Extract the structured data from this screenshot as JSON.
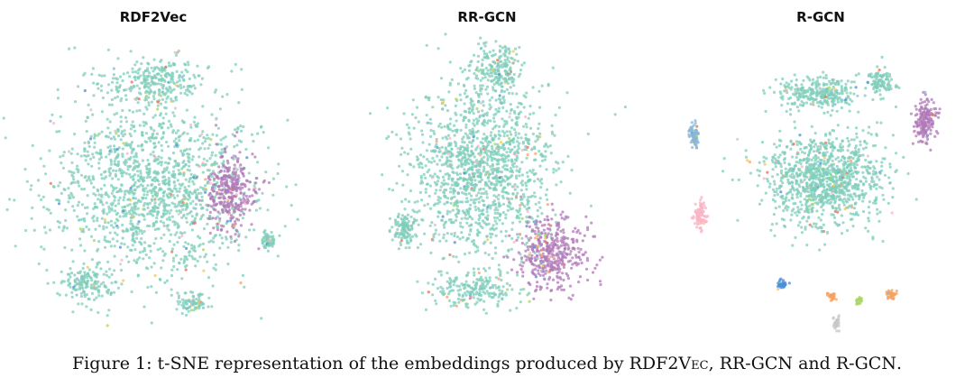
{
  "caption": {
    "prefix": "Figure 1: t-SNE representation of the embeddings produced by ",
    "method1": "RDF2Vec",
    "sep1": ", ",
    "method2": "RR-GCN",
    "sep2": " and ",
    "method3": "R-GCN",
    "suffix": "."
  },
  "palette": {
    "dominant": "#7fcdbb",
    "purple": "#b07ab8",
    "others": [
      "#f2c94c",
      "#f4a261",
      "#e76f51",
      "#8ab6d6",
      "#a6d854",
      "#fbb4c4",
      "#4a90d9",
      "#c7c7c7"
    ]
  },
  "chart_data": [
    {
      "type": "scatter",
      "title": "RDF2Vec",
      "xlabel": "",
      "ylabel": "",
      "grid": false,
      "axes_visible": false,
      "clusters": [
        {
          "cx": 0.0,
          "cy": 0.0,
          "sx": 0.95,
          "sy": 0.75,
          "n": 1500,
          "color": "dominant"
        },
        {
          "cx": 0.05,
          "cy": 0.85,
          "sx": 0.45,
          "sy": 0.18,
          "n": 260,
          "color": "dominant"
        },
        {
          "cx": 0.7,
          "cy": -0.05,
          "sx": 0.22,
          "sy": 0.3,
          "n": 340,
          "color": "purple"
        },
        {
          "cx": 1.05,
          "cy": -0.45,
          "sx": 0.08,
          "sy": 0.07,
          "n": 60,
          "color": "dominant"
        },
        {
          "cx": -0.6,
          "cy": -0.8,
          "sx": 0.22,
          "sy": 0.15,
          "n": 150,
          "color": "dominant"
        },
        {
          "cx": 0.35,
          "cy": -0.95,
          "sx": 0.15,
          "sy": 0.08,
          "n": 80,
          "color": "dominant"
        }
      ],
      "mixed_fraction": 0.06,
      "x_range": [
        -1.4,
        1.4
      ],
      "y_range": [
        -1.25,
        1.25
      ]
    },
    {
      "type": "scatter",
      "title": "RR-GCN",
      "xlabel": "",
      "ylabel": "",
      "grid": false,
      "axes_visible": false,
      "clusters": [
        {
          "cx": -0.05,
          "cy": 0.15,
          "sx": 0.65,
          "sy": 0.7,
          "n": 1400,
          "color": "dominant"
        },
        {
          "cx": 0.1,
          "cy": 0.95,
          "sx": 0.22,
          "sy": 0.2,
          "n": 180,
          "color": "dominant"
        },
        {
          "cx": 0.6,
          "cy": -0.55,
          "sx": 0.3,
          "sy": 0.3,
          "n": 420,
          "color": "purple"
        },
        {
          "cx": -0.75,
          "cy": -0.35,
          "sx": 0.12,
          "sy": 0.15,
          "n": 120,
          "color": "dominant"
        },
        {
          "cx": -0.1,
          "cy": -0.85,
          "sx": 0.4,
          "sy": 0.15,
          "n": 200,
          "color": "dominant"
        }
      ],
      "mixed_fraction": 0.07,
      "x_range": [
        -1.4,
        1.4
      ],
      "y_range": [
        -1.25,
        1.25
      ]
    },
    {
      "type": "scatter",
      "title": "R-GCN",
      "xlabel": "",
      "ylabel": "",
      "grid": false,
      "axes_visible": false,
      "clusters": [
        {
          "cx": 0.05,
          "cy": 0.0,
          "sx": 0.55,
          "sy": 0.4,
          "n": 1100,
          "color": "dominant"
        },
        {
          "cx": 0.0,
          "cy": 0.8,
          "sx": 0.4,
          "sy": 0.15,
          "n": 300,
          "color": "dominant"
        },
        {
          "cx": 0.55,
          "cy": 0.9,
          "sx": 0.12,
          "sy": 0.12,
          "n": 100,
          "color": "dominant"
        },
        {
          "cx": 0.95,
          "cy": 0.55,
          "sx": 0.1,
          "sy": 0.18,
          "n": 180,
          "color": "purple"
        },
        {
          "cx": -1.15,
          "cy": 0.4,
          "sx": 0.05,
          "sy": 0.1,
          "n": 80,
          "color": "others.3"
        },
        {
          "cx": -1.1,
          "cy": -0.3,
          "sx": 0.06,
          "sy": 0.12,
          "n": 90,
          "color": "others.5"
        },
        {
          "cx": -0.35,
          "cy": -0.95,
          "sx": 0.05,
          "sy": 0.04,
          "n": 40,
          "color": "others.6"
        },
        {
          "cx": 0.1,
          "cy": -1.05,
          "sx": 0.04,
          "sy": 0.04,
          "n": 30,
          "color": "others.1"
        },
        {
          "cx": 0.35,
          "cy": -1.1,
          "sx": 0.03,
          "sy": 0.03,
          "n": 30,
          "color": "others.4"
        },
        {
          "cx": 0.65,
          "cy": -1.05,
          "sx": 0.05,
          "sy": 0.04,
          "n": 40,
          "color": "others.1"
        },
        {
          "cx": 0.15,
          "cy": -1.3,
          "sx": 0.03,
          "sy": 0.06,
          "n": 30,
          "color": "others.7"
        }
      ],
      "mixed_fraction": 0.05,
      "x_range": [
        -1.4,
        1.4
      ],
      "y_range": [
        -1.45,
        1.35
      ]
    }
  ]
}
